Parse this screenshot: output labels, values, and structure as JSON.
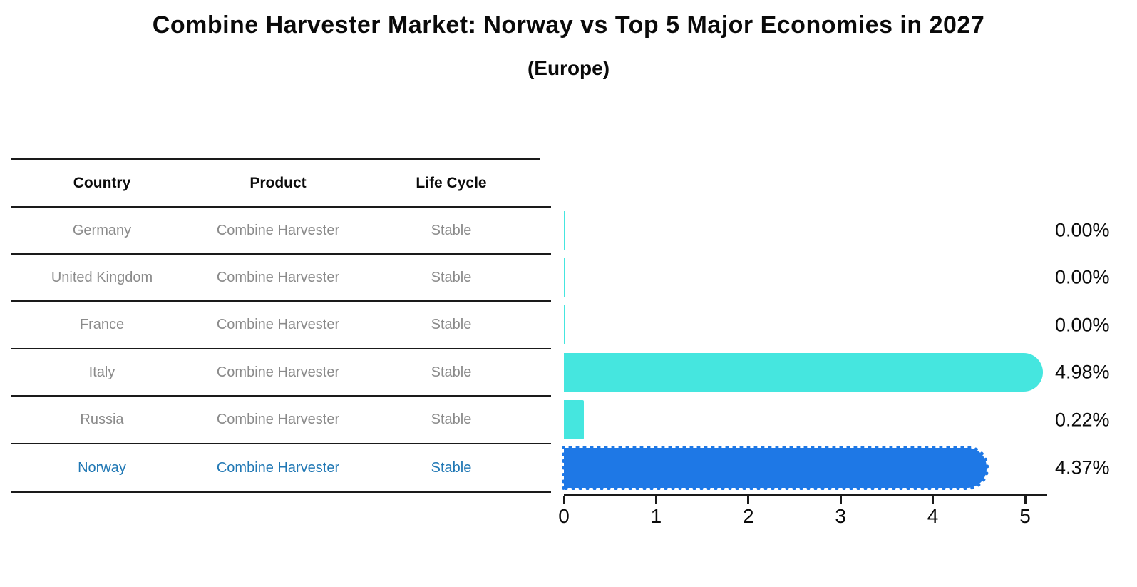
{
  "title": "Combine Harvester Market: Norway vs Top 5 Major Economies in 2027",
  "subtitle": "(Europe)",
  "table": {
    "headers": [
      "Country",
      "Product",
      "Life Cycle"
    ],
    "rows": [
      {
        "country": "Germany",
        "product": "Combine Harvester",
        "life_cycle": "Stable",
        "highlight": false
      },
      {
        "country": "United Kingdom",
        "product": "Combine Harvester",
        "life_cycle": "Stable",
        "highlight": false
      },
      {
        "country": "France",
        "product": "Combine Harvester",
        "life_cycle": "Stable",
        "highlight": false
      },
      {
        "country": "Italy",
        "product": "Combine Harvester",
        "life_cycle": "Stable",
        "highlight": false
      },
      {
        "country": "Russia",
        "product": "Combine Harvester",
        "life_cycle": "Stable",
        "highlight": false
      },
      {
        "country": "Norway",
        "product": "Combine Harvester",
        "life_cycle": "Stable",
        "highlight": true
      }
    ]
  },
  "chart_data": {
    "type": "bar",
    "orientation": "horizontal",
    "title": "Combine Harvester Market: Norway vs Top 5 Major Economies in 2027 (Europe)",
    "categories": [
      "Germany",
      "United Kingdom",
      "France",
      "Italy",
      "Russia",
      "Norway"
    ],
    "values": [
      0.0,
      0.0,
      0.0,
      4.98,
      0.22,
      4.37
    ],
    "labels": [
      "0.00%",
      "0.00%",
      "0.00%",
      "4.98%",
      "0.22%",
      "4.37%"
    ],
    "unit": "percent",
    "xlim": [
      0,
      5.24
    ],
    "xticks": [
      0,
      1,
      2,
      3,
      4,
      5
    ],
    "grid": false,
    "legend": null,
    "highlight_index": 5
  },
  "colors": {
    "bar": "#45E6DF",
    "highlight_bar": "#1E78E6",
    "highlight_text": "#1F77B4",
    "muted_text": "#8a8a8a",
    "axis": "#1a1a1a"
  }
}
